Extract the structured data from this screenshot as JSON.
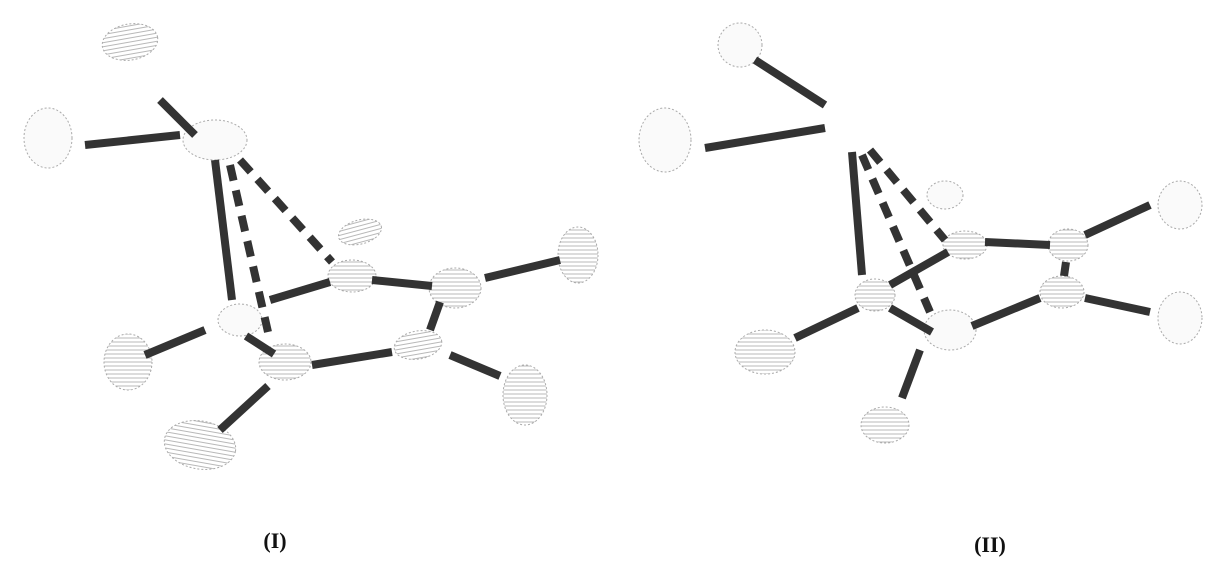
{
  "figures": [
    {
      "label": "(I)"
    },
    {
      "label": "(II)"
    }
  ]
}
